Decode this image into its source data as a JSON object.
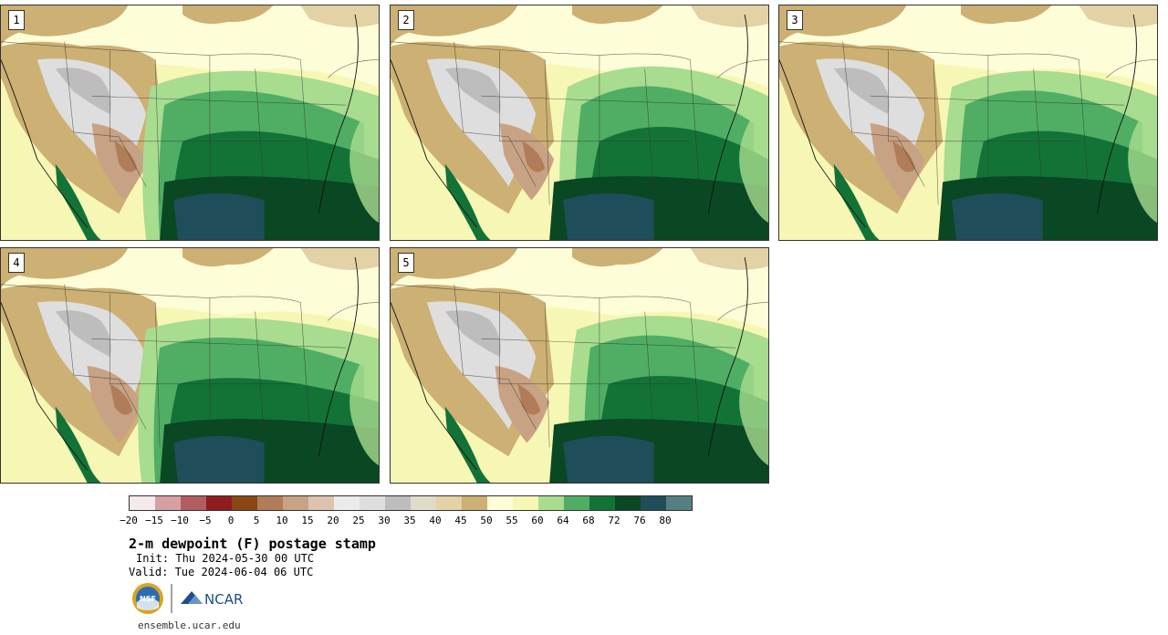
{
  "stamps": [
    {
      "label": "1"
    },
    {
      "label": "2"
    },
    {
      "label": "3"
    },
    {
      "label": "4"
    },
    {
      "label": "5"
    }
  ],
  "colorbar": {
    "colors": [
      "#f6e9e9",
      "#d6a0a2",
      "#b25d60",
      "#8e1c20",
      "#8a4714",
      "#b07d58",
      "#c8a284",
      "#dcc3ae",
      "#ebebeb",
      "#dedede",
      "#bdbdbd",
      "#dfdcc8",
      "#e2d2a5",
      "#cdb073",
      "#fdfdd8",
      "#f7f7b5",
      "#a8dc8f",
      "#4fae63",
      "#137336",
      "#0a4723",
      "#1f4d5a",
      "#557f80"
    ],
    "ticks": [
      "−20",
      "−15",
      "−10",
      "−5",
      "0",
      "5",
      "10",
      "15",
      "20",
      "25",
      "30",
      "35",
      "40",
      "45",
      "50",
      "55",
      "60",
      "64",
      "68",
      "72",
      "76",
      "80"
    ]
  },
  "title": "2-m dewpoint (F) postage stamp",
  "init": "Init: Thu 2024-05-30 00 UTC",
  "valid": "Valid: Tue 2024-06-04 06 UTC",
  "logos": {
    "nsf": "NSF",
    "ncar": "NCAR",
    "nsf_icon": "nsf-globe-icon",
    "ncar_icon": "ncar-mark-icon"
  },
  "url": "ensemble.ucar.edu"
}
